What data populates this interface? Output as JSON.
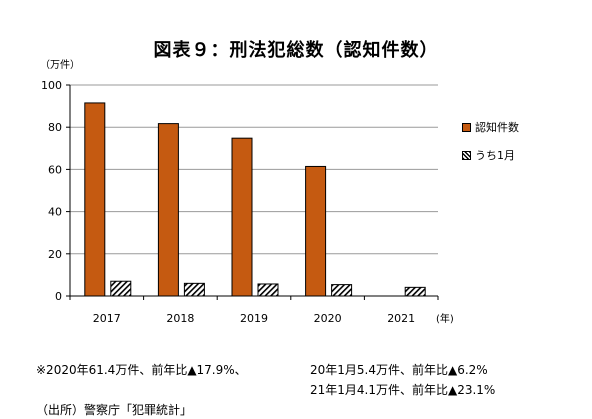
{
  "title": "図表９：刑法犯総数（認知件数）",
  "y_unit": "（万件）",
  "x_unit": "(年)",
  "legend": [
    {
      "label": "認知件数",
      "color": "#C55A11",
      "pattern": "solid"
    },
    {
      "label": "うち1月",
      "color": "#000000",
      "pattern": "hatch"
    }
  ],
  "notes": {
    "line1_left": "※2020年61.4万件、前年比▲17.9%、",
    "line1_right": "20年1月5.4万件、前年比▲6.2%",
    "line2_right": "21年1月4.1万件、前年比▲23.1%"
  },
  "source": "（出所）警察庁「犯罪統計」",
  "chart_data": {
    "type": "bar",
    "categories": [
      "2017",
      "2018",
      "2019",
      "2020",
      "2021"
    ],
    "series": [
      {
        "name": "認知件数",
        "values": [
          91.5,
          81.7,
          74.8,
          61.4,
          null
        ],
        "color": "#C55A11"
      },
      {
        "name": "うち1月",
        "values": [
          7.0,
          6.0,
          5.7,
          5.4,
          4.1
        ],
        "color": "#000000"
      }
    ],
    "yticks": [
      0,
      20,
      40,
      60,
      80,
      100
    ],
    "ylim": [
      0,
      100
    ],
    "grid": true,
    "legend_position": "right"
  }
}
